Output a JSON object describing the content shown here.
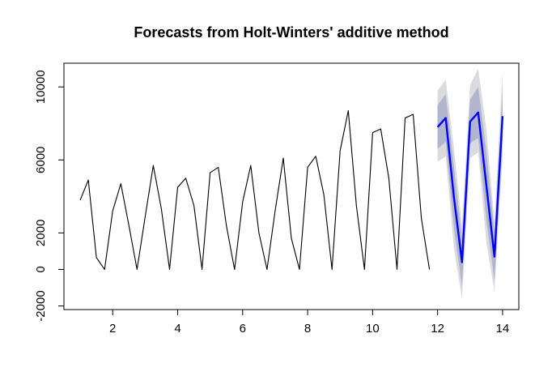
{
  "chart_data": {
    "type": "line",
    "title": "Forecasts from Holt-Winters' additive method",
    "xlabel": "",
    "ylabel": "",
    "xlim": [
      0.5,
      14.5
    ],
    "ylim": [
      -2200,
      11300
    ],
    "x_ticks": [
      2,
      4,
      6,
      8,
      10,
      12,
      14
    ],
    "y_ticks": [
      -2000,
      0,
      2000,
      6000,
      10000
    ],
    "grid": false,
    "legend": "none",
    "colors": {
      "observed": "#000000",
      "forecast": "#0000ff",
      "interval_80": "#b1b5ce",
      "interval_95": "#dbdbdf"
    },
    "series": [
      {
        "x": [
          1,
          1.25,
          1.5,
          1.75,
          2,
          2.25,
          2.5,
          2.75,
          3,
          3.25,
          3.5,
          3.75,
          4,
          4.25,
          4.5,
          4.75,
          5,
          5.25,
          5.5,
          5.75,
          6,
          6.25,
          6.5,
          6.75,
          7,
          7.25,
          7.5,
          7.75,
          8,
          8.25,
          8.5,
          8.75,
          9,
          9.25,
          9.5,
          9.75,
          10,
          10.25,
          10.5,
          10.75,
          11,
          11.25,
          11.5,
          11.75
        ],
        "values": [
          3800,
          4900,
          650,
          0,
          3200,
          4700,
          2400,
          0,
          2900,
          5700,
          3300,
          0,
          4500,
          5000,
          3500,
          0,
          5300,
          5600,
          2400,
          0,
          3700,
          5700,
          2000,
          0,
          3200,
          6100,
          1700,
          0,
          5600,
          6200,
          4100,
          0,
          6500,
          8700,
          3500,
          0,
          7500,
          7700,
          5000,
          0,
          8300,
          8500,
          2800,
          0
        ]
      },
      {
        "x": [
          12,
          12.25,
          12.5,
          12.75,
          13,
          13.25,
          13.5,
          13.75,
          14
        ],
        "values": [
          7800,
          8300,
          4000,
          400,
          8100,
          8600,
          4600,
          700,
          8400
        ]
      }
    ],
    "intervals": {
      "x": [
        12,
        12.25,
        12.5,
        12.75,
        13,
        13.25,
        13.5,
        13.75,
        14
      ],
      "lower80": [
        6600,
        7000,
        2300,
        -900,
        6900,
        7200,
        2700,
        -600,
        7000
      ],
      "upper80": [
        9000,
        9600,
        5700,
        1700,
        9300,
        10000,
        6500,
        2000,
        9800
      ],
      "lower95": [
        5900,
        6200,
        1200,
        -1600,
        6100,
        6400,
        1500,
        -1200,
        6200
      ],
      "upper95": [
        9800,
        10400,
        6700,
        2400,
        10100,
        11000,
        7700,
        2600,
        10900
      ]
    }
  }
}
